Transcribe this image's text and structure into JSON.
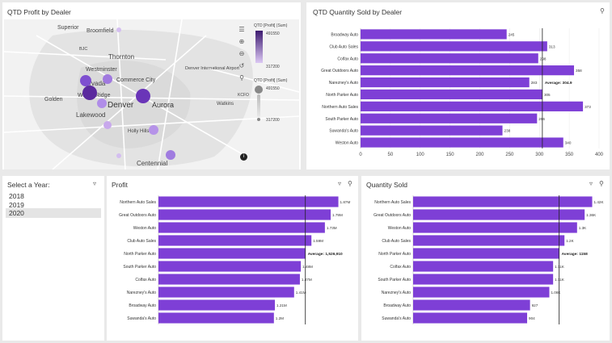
{
  "colors": {
    "accent": "#7e3fd6",
    "accent_dark": "#5b2a9e",
    "light": "#c8a8ec",
    "avg_line": "#222222"
  },
  "map_panel": {
    "title": "QTD Profit by Dealer",
    "labels": [
      "Superior",
      "Broomfield",
      "BJC",
      "Thornton",
      "Westminster",
      "Commerce City",
      "Denver International Airport",
      "Arvada",
      "Wheat Ridge",
      "Golden",
      "Denver",
      "Aurora",
      "Watkins",
      "Lakewood",
      "Holly Hills",
      "Centennial",
      "KCFO"
    ],
    "tools": [
      "layers-icon",
      "zoom-in-icon",
      "zoom-out-icon",
      "reset-icon",
      "search-icon",
      "pin-icon"
    ],
    "legend": {
      "color_title": "QTD [Profit] (Sum)",
      "color_max": "491550",
      "color_min": "317200",
      "size_title": "QTD [Profit] (Sum)",
      "size_max": "491550",
      "size_min": "317200"
    },
    "info_icon": "info-icon"
  },
  "qty_panel": {
    "title": "QTD Quantity Sold by Dealer",
    "icon": "lightbulb-icon"
  },
  "year_panel": {
    "title": "Select a Year:",
    "filter_icon": "filter-icon",
    "years": [
      "2018",
      "2019",
      "2020"
    ],
    "selected": "2020"
  },
  "profit_panel": {
    "title": "Profit",
    "icons": [
      "filter-icon",
      "lightbulb-icon"
    ]
  },
  "qtysold_panel": {
    "title": "Quantity Sold",
    "icons": [
      "filter-icon",
      "lightbulb-icon"
    ]
  },
  "chart_data": [
    {
      "type": "bar",
      "orientation": "horizontal",
      "title": "QTD Quantity Sold by Dealer",
      "categories": [
        "Broadway Auto",
        "Club Auto Sales",
        "Colfax Auto",
        "Great Outdoors Auto",
        "Narezney's Auto",
        "North Parker Auto",
        "Northern Auto Sales",
        "South Parker Auto",
        "Suwanda's Auto",
        "Weston Auto"
      ],
      "values": [
        245,
        313,
        298,
        358,
        283,
        305,
        373,
        296,
        238,
        340
      ],
      "data_labels": [
        "245",
        "313",
        "298",
        "358",
        "283",
        "305",
        "373",
        "296",
        "238",
        "340"
      ],
      "xlim": [
        0,
        400
      ],
      "xticks": [
        "0",
        "50",
        "100",
        "150",
        "200",
        "250",
        "300",
        "350",
        "400"
      ],
      "average": 304.9,
      "average_label": "Average: 304.9"
    },
    {
      "type": "bar",
      "orientation": "horizontal",
      "title": "Profit",
      "categories": [
        "Northern Auto Sales",
        "Great Outdoors Auto",
        "Weston Auto",
        "Club Auto Sales",
        "North Parker Auto",
        "South Parker Auto",
        "Colfax Auto",
        "Narezney's Auto",
        "Broadway Auto",
        "Suwanda's Auto"
      ],
      "values": [
        1870000,
        1790000,
        1730000,
        1590000,
        1526910,
        1480000,
        1470000,
        1410000,
        1210000,
        1200000
      ],
      "data_labels": [
        "1.87M",
        "1.79M",
        "1.73M",
        "1.59M",
        "",
        "1.48M",
        "1.47M",
        "1.41M",
        "1.21M",
        "1.2M"
      ],
      "xlim": [
        0,
        2000000
      ],
      "average": 1526910,
      "average_label": "Average: 1,526,910"
    },
    {
      "type": "bar",
      "orientation": "horizontal",
      "title": "Quantity Sold",
      "categories": [
        "Northern Auto Sales",
        "Great Outdoors Auto",
        "Weston Auto",
        "Club Auto Sales",
        "North Parker Auto",
        "Colfax Auto",
        "South Parker Auto",
        "Narezney's Auto",
        "Broadway Auto",
        "Suwanda's Auto"
      ],
      "values": [
        1420,
        1360,
        1300,
        1200,
        1158,
        1110,
        1110,
        1080,
        927,
        904
      ],
      "data_labels": [
        "1.42K",
        "1.36K",
        "1.3K",
        "1.2K",
        "",
        "1.11K",
        "1.11K",
        "1.08K",
        "927",
        "904"
      ],
      "xlim": [
        0,
        1500
      ],
      "average": 1158,
      "average_label": "Average: 1158"
    }
  ]
}
